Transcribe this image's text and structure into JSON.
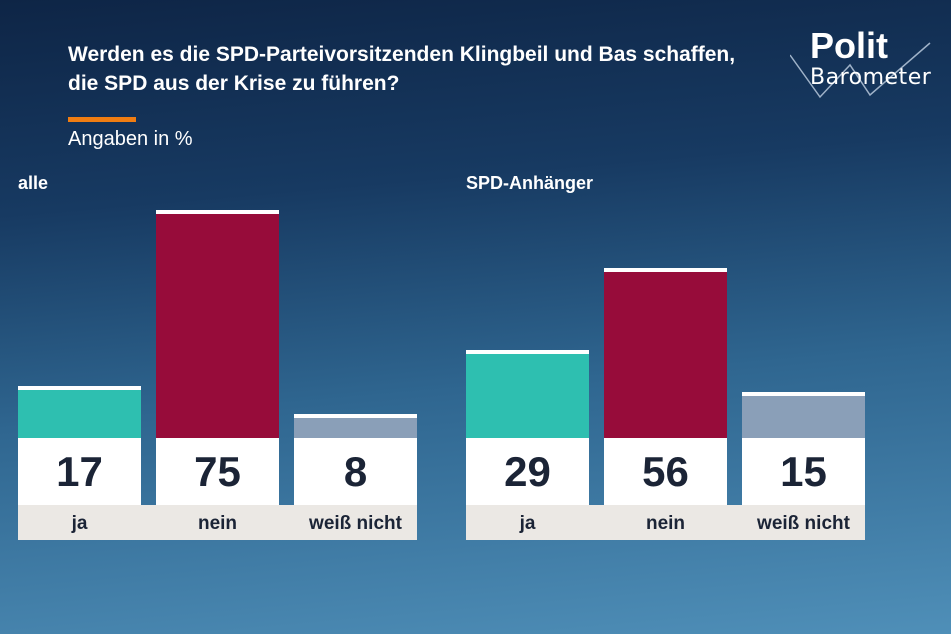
{
  "header": {
    "title": "Werden es die SPD-Parteivorsitzenden Klingbeil und Bas schaffen, die SPD aus der Krise zu führen?",
    "subtitle": "Angaben in %",
    "logo": {
      "line1": "Polit",
      "line2": "Barometer"
    }
  },
  "chart_data": [
    {
      "type": "bar",
      "title": "alle",
      "categories": [
        "ja",
        "nein",
        "weiß nicht"
      ],
      "values": [
        17,
        75,
        8
      ],
      "colors": [
        "#2ebfb0",
        "#970c3a",
        "#8a9fb8"
      ]
    },
    {
      "type": "bar",
      "title": "SPD-Anhänger",
      "categories": [
        "ja",
        "nein",
        "weiß nicht"
      ],
      "values": [
        29,
        56,
        15
      ],
      "colors": [
        "#2ebfb0",
        "#970c3a",
        "#8a9fb8"
      ]
    }
  ]
}
